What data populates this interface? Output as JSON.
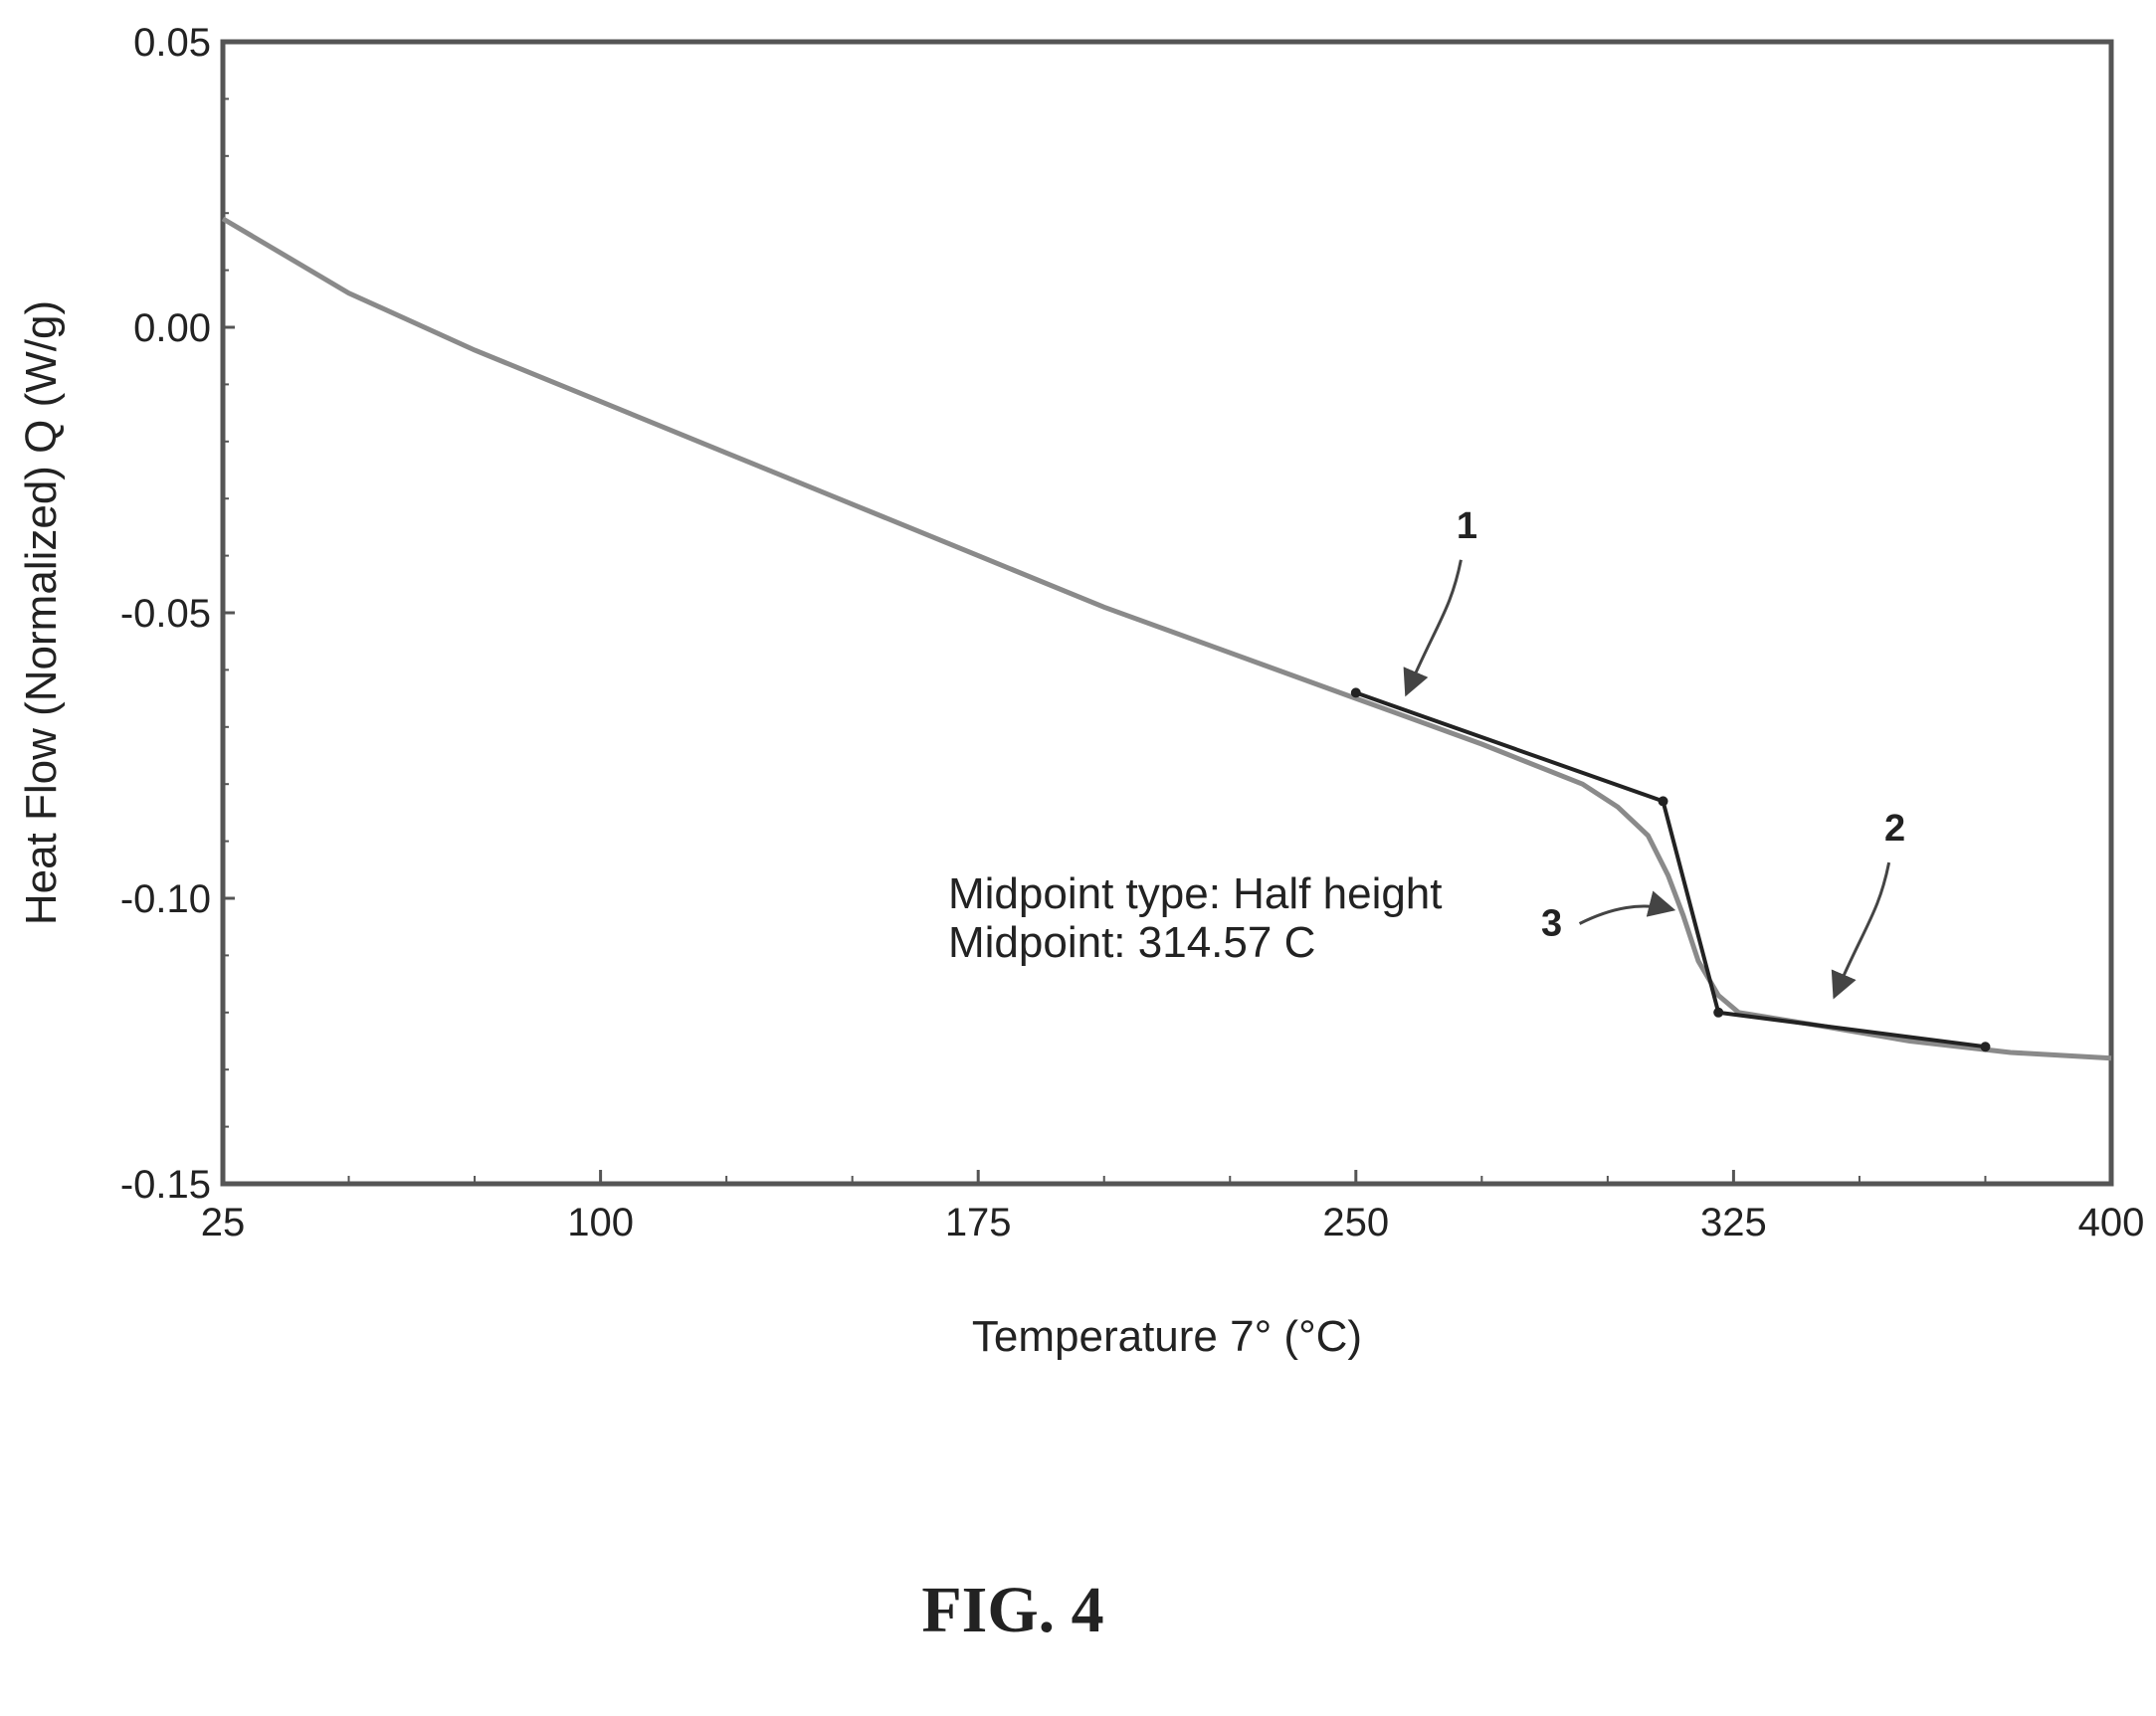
{
  "chart_data": {
    "type": "line",
    "title": "",
    "xlabel": "Temperature 7° (°C)",
    "ylabel": "Heat Flow (Normalized) Q (W/g)",
    "xlim": [
      25,
      400
    ],
    "ylim": [
      -0.15,
      0.05
    ],
    "x_ticks": [
      {
        "value": 25,
        "label": "25"
      },
      {
        "value": 100,
        "label": "100"
      },
      {
        "value": 175,
        "label": "175"
      },
      {
        "value": 250,
        "label": "250"
      },
      {
        "value": 325,
        "label": "325"
      },
      {
        "value": 400,
        "label": "400"
      }
    ],
    "y_ticks": [
      {
        "value": 0.05,
        "label": "0.05"
      },
      {
        "value": 0.0,
        "label": "0.00"
      },
      {
        "value": -0.05,
        "label": "-0.05"
      },
      {
        "value": -0.1,
        "label": "-0.10"
      },
      {
        "value": -0.15,
        "label": "-0.15"
      }
    ],
    "grid": false,
    "series": [
      {
        "role": "measured-curve",
        "x": [
          25,
          50,
          75,
          100,
          125,
          150,
          175,
          200,
          225,
          250,
          275,
          295,
          302,
          308,
          312,
          315,
          318,
          322,
          326,
          340,
          360,
          380,
          400
        ],
        "y": [
          0.019,
          0.006,
          -0.004,
          -0.013,
          -0.022,
          -0.031,
          -0.04,
          -0.049,
          -0.057,
          -0.065,
          -0.073,
          -0.08,
          -0.084,
          -0.089,
          -0.096,
          -0.103,
          -0.111,
          -0.117,
          -0.12,
          -0.122,
          -0.125,
          -0.127,
          -0.128
        ]
      },
      {
        "role": "tangent-lines",
        "x": [
          250,
          311,
          322,
          375
        ],
        "y": [
          -0.064,
          -0.083,
          -0.12,
          -0.126
        ]
      }
    ],
    "annotations": [
      {
        "text": "Midpoint type: Half height"
      },
      {
        "text": "Midpoint: 314.57  C"
      }
    ],
    "markers": [
      {
        "label": "1",
        "target_x": 260,
        "target_y": -0.066
      },
      {
        "label": "2",
        "target_x": 345,
        "target_y": -0.119
      },
      {
        "label": "3",
        "target_x": 314.57,
        "target_y": -0.102
      }
    ]
  },
  "figure_caption": "FIG. 4",
  "colors": {
    "frame": "#555555",
    "curve": "#8a8a8a",
    "tangent": "#222222",
    "text": "#222222"
  }
}
